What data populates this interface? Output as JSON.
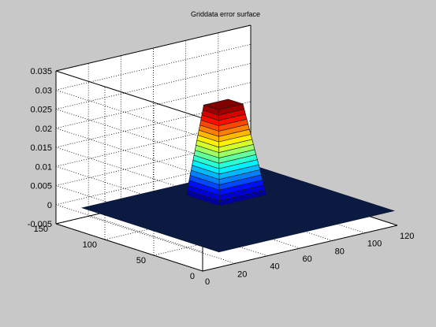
{
  "figure": {
    "background": "#c8c8c8",
    "axes_background": "#ffffff"
  },
  "chart_data": {
    "type": "surface",
    "title": "Griddata error surface",
    "xlabel": "",
    "ylabel": "",
    "zlabel": "",
    "xlim": [
      0,
      120
    ],
    "ylim": [
      0,
      150
    ],
    "zlim": [
      -0.005,
      0.035
    ],
    "x_ticks": [
      0,
      20,
      40,
      60,
      80,
      100,
      120
    ],
    "y_ticks": [
      0,
      50,
      100,
      150
    ],
    "z_ticks": [
      -0.005,
      0,
      0.005,
      0.01,
      0.015,
      0.02,
      0.025,
      0.03,
      0.035
    ],
    "z_tick_labels": [
      "-0.005",
      "0",
      "0.005",
      "0.01",
      "0.015",
      "0.02",
      "0.025",
      "0.03",
      "0.035"
    ],
    "grid": true,
    "colormap": "jet",
    "surface_extent": {
      "x": [
        10,
        118
      ],
      "y": [
        0,
        140
      ]
    },
    "base_value": -0.001,
    "peak": {
      "value": 0.0227,
      "top_x": [
        67,
        82
      ],
      "top_y": [
        95,
        110
      ],
      "base_x": [
        61,
        90
      ],
      "base_y": [
        84,
        118
      ]
    }
  }
}
